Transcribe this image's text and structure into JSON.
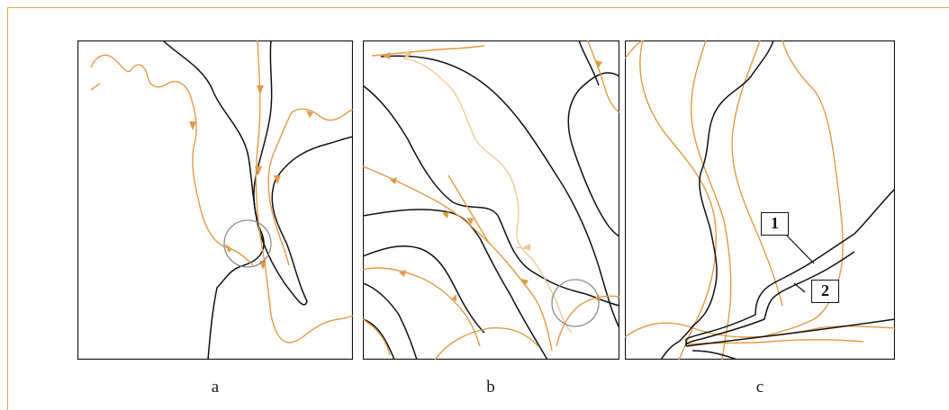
{
  "panels": [
    {
      "caption": "a"
    },
    {
      "caption": "b"
    },
    {
      "caption": "c"
    }
  ],
  "labels": [
    "1",
    "2"
  ],
  "colors": {
    "frame": "#e8a54a",
    "stream": "#e29a45",
    "stream_faint": "#efc692",
    "ridge": "#111111",
    "circle": "#8c8c8c"
  }
}
